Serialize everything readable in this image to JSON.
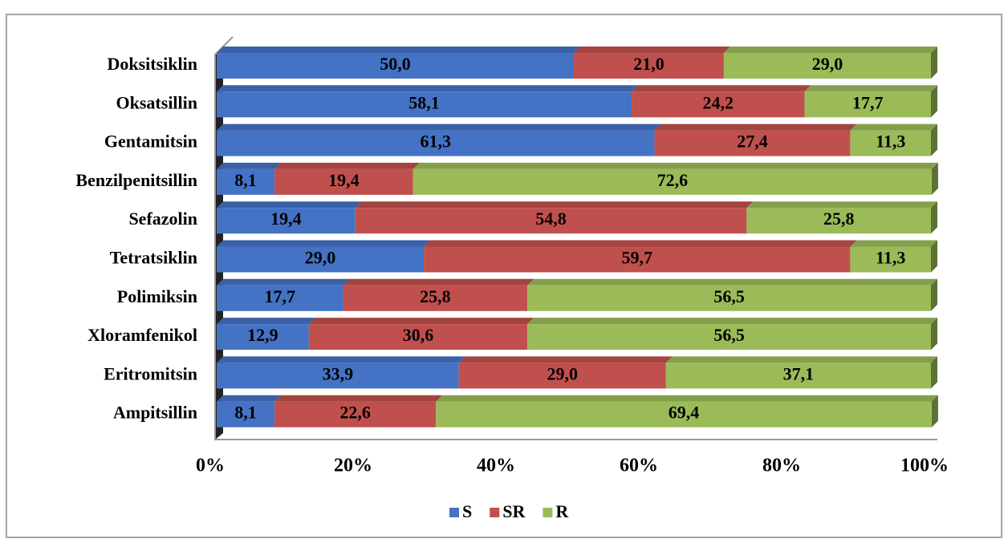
{
  "chart_data": {
    "type": "bar",
    "orientation": "horizontal",
    "stacked": "percent",
    "categories": [
      "Doksitsiklin",
      "Oksatsillin",
      "Gentamitsin",
      "Benzilpenitsillin",
      "Sefazolin",
      "Tetratsiklin",
      "Polimiksin",
      "Xloramfenikol",
      "Eritromitsin",
      "Ampitsillin"
    ],
    "series": [
      {
        "name": "S",
        "color": "#4472c4",
        "values": [
          50.0,
          58.1,
          61.3,
          8.1,
          19.4,
          29.0,
          17.7,
          12.9,
          33.9,
          8.1
        ],
        "value_labels": [
          "50,0",
          "58,1",
          "61,3",
          "8,1",
          "19,4",
          "29,0",
          "17,7",
          "12,9",
          "33,9",
          "8,1"
        ]
      },
      {
        "name": "SR",
        "color": "#c0504d",
        "values": [
          21.0,
          24.2,
          27.4,
          19.4,
          54.8,
          59.7,
          25.8,
          30.6,
          29.0,
          22.6
        ],
        "value_labels": [
          "21,0",
          "24,2",
          "27,4",
          "19,4",
          "54,8",
          "59,7",
          "25,8",
          "30,6",
          "29,0",
          "22,6"
        ]
      },
      {
        "name": "R",
        "color": "#9bbb59",
        "values": [
          29.0,
          17.7,
          11.3,
          72.6,
          25.8,
          11.3,
          56.5,
          56.5,
          37.1,
          69.4
        ],
        "value_labels": [
          "29,0",
          "17,7",
          "11,3",
          "72,6",
          "25,8",
          "11,3",
          "56,5",
          "56,5",
          "37,1",
          "69,4"
        ]
      }
    ],
    "xlim": [
      0,
      100
    ],
    "xticks": [
      {
        "value": 0,
        "label": "0%"
      },
      {
        "value": 20,
        "label": "20%"
      },
      {
        "value": 40,
        "label": "40%"
      },
      {
        "value": 60,
        "label": "60%"
      },
      {
        "value": 80,
        "label": "80%"
      },
      {
        "value": 100,
        "label": "100%"
      }
    ],
    "legend": "bottom"
  }
}
